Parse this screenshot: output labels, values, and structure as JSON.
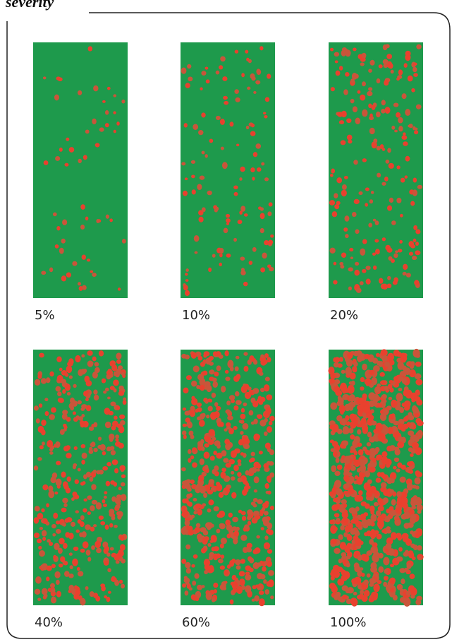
{
  "header": {
    "title": "severity"
  },
  "panels": [
    {
      "label": "5%"
    },
    {
      "label": "10%"
    },
    {
      "label": "20%"
    },
    {
      "label": "40%"
    },
    {
      "label": "60%"
    },
    {
      "label": "100%"
    }
  ]
}
